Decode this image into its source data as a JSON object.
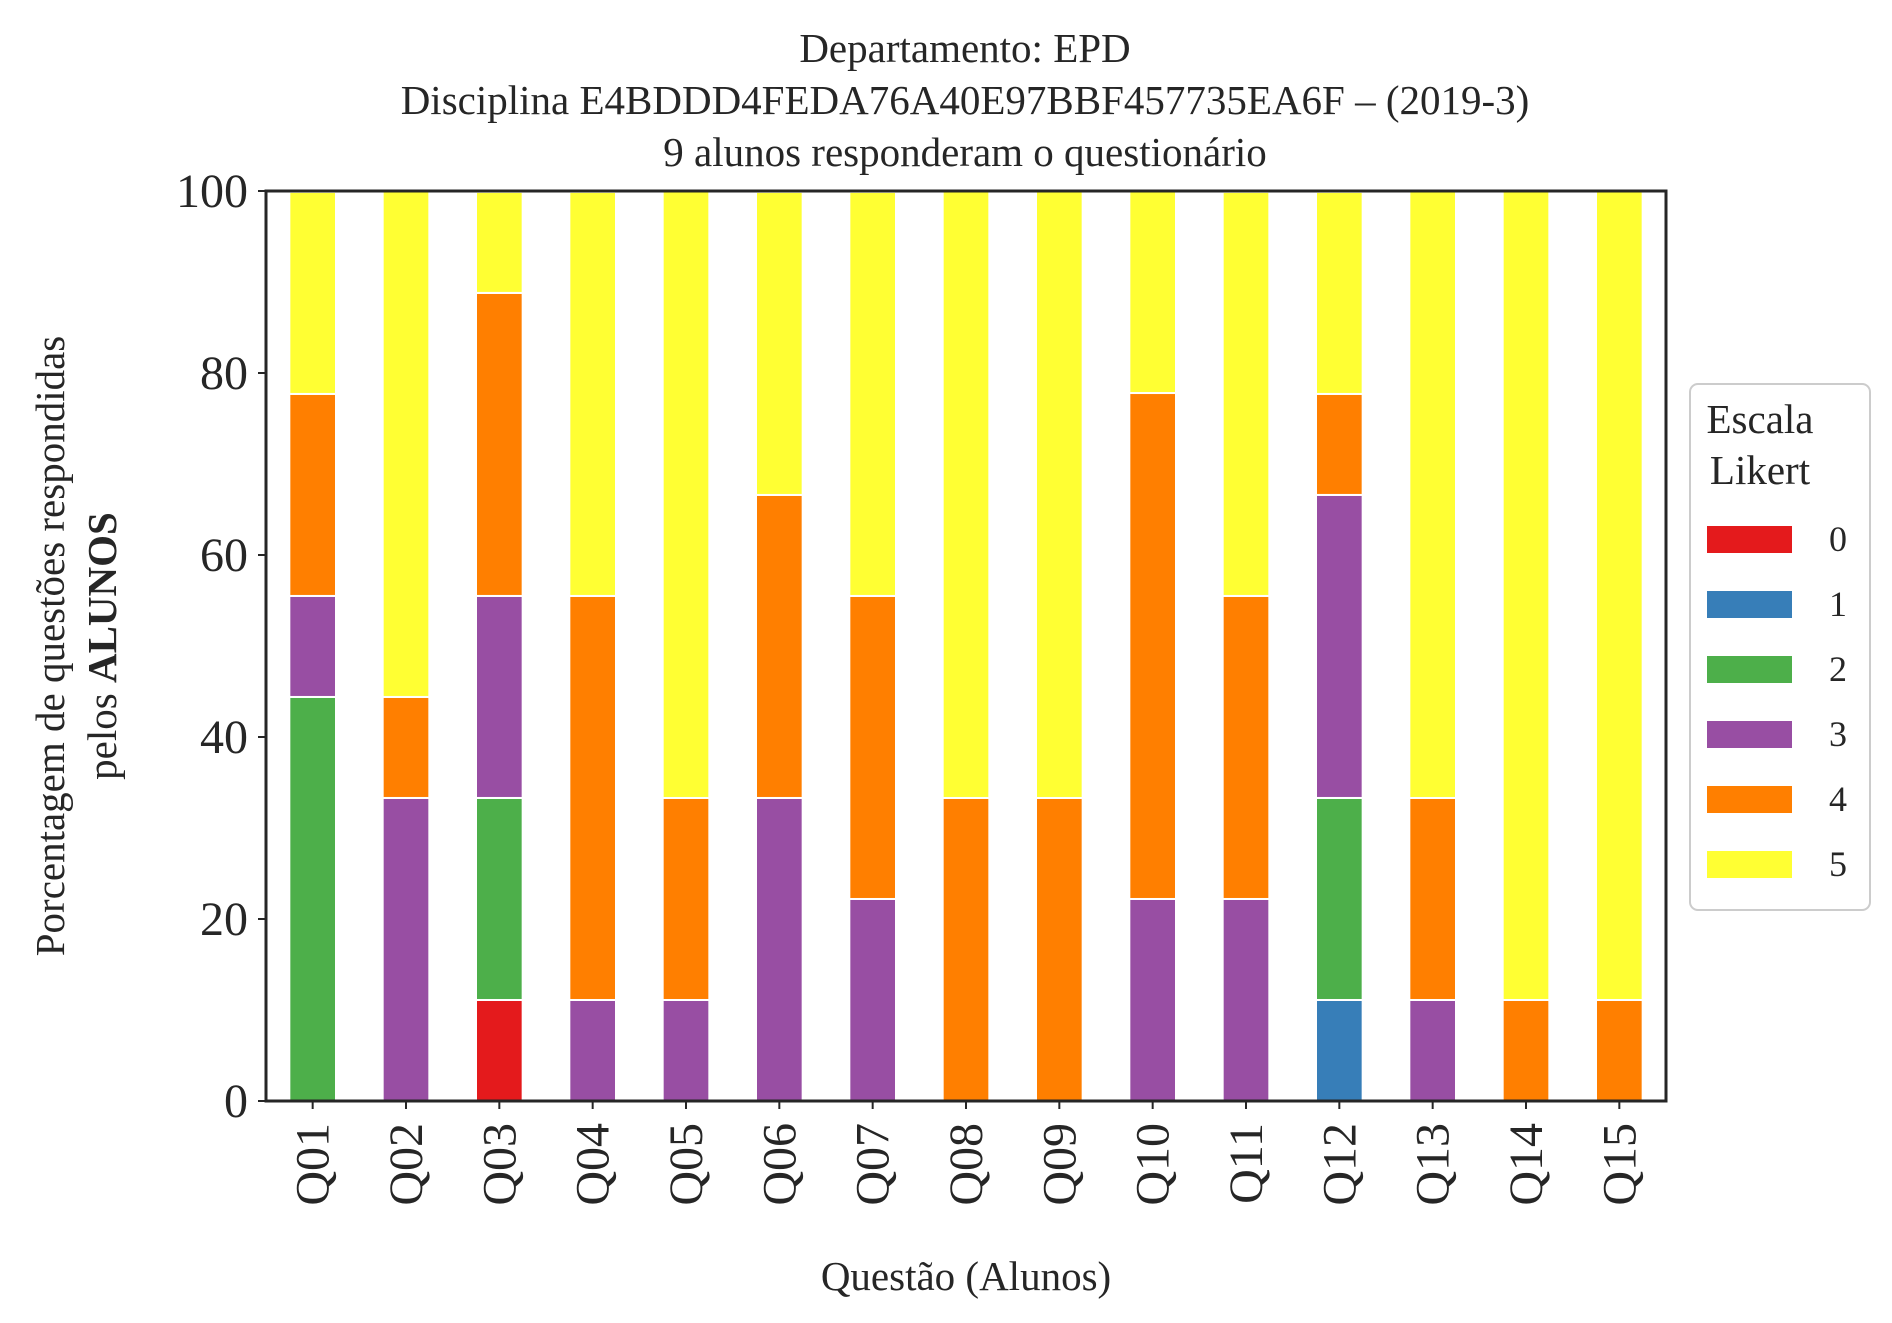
{
  "chart_data": {
    "type": "bar",
    "stacked": true,
    "title_lines": [
      "Departamento: EPD",
      "Disciplina E4BDDD4FEDA76A40E97BBF457735EA6F – (2019-3)",
      "9 alunos responderam o questionário"
    ],
    "xlabel": "Questão (Alunos)",
    "ylabel_line1": "Porcentagem de questões respondidas",
    "ylabel_line2_prefix": "pelos ",
    "ylabel_line2_bold": "ALUNOS",
    "ylim": [
      0,
      100
    ],
    "yticks": [
      0,
      20,
      40,
      60,
      80,
      100
    ],
    "grid": false,
    "legend_position": "right-center",
    "legend_title_lines": [
      "Escala",
      "Likert"
    ],
    "categories": [
      "Q01",
      "Q02",
      "Q03",
      "Q04",
      "Q05",
      "Q06",
      "Q07",
      "Q08",
      "Q09",
      "Q10",
      "Q11",
      "Q12",
      "Q13",
      "Q14",
      "Q15"
    ],
    "series": [
      {
        "name": "0",
        "color": "#e41a1c",
        "values": [
          0,
          0,
          11.1,
          0,
          0,
          0,
          0,
          0,
          0,
          0,
          0,
          0,
          0,
          0,
          0
        ]
      },
      {
        "name": "1",
        "color": "#377eb8",
        "values": [
          0,
          0,
          0,
          0,
          0,
          0,
          0,
          0,
          0,
          0,
          0,
          11.1,
          0,
          0,
          0
        ]
      },
      {
        "name": "2",
        "color": "#4daf4a",
        "values": [
          44.4,
          0,
          22.2,
          0,
          0,
          0,
          0,
          0,
          0,
          0,
          0,
          22.2,
          0,
          0,
          0
        ]
      },
      {
        "name": "3",
        "color": "#984ea3",
        "values": [
          11.1,
          33.3,
          22.2,
          11.1,
          11.1,
          33.3,
          22.2,
          0,
          0,
          22.2,
          22.2,
          33.3,
          11.1,
          0,
          0
        ]
      },
      {
        "name": "4",
        "color": "#ff7f00",
        "values": [
          22.2,
          11.1,
          33.3,
          44.4,
          22.2,
          33.3,
          33.3,
          33.3,
          33.3,
          55.6,
          33.3,
          11.1,
          22.2,
          11.1,
          11.1
        ]
      },
      {
        "name": "5",
        "color": "#ffff33",
        "values": [
          22.2,
          55.6,
          11.1,
          44.4,
          66.7,
          33.3,
          44.4,
          66.7,
          66.7,
          22.2,
          44.4,
          22.2,
          66.7,
          88.9,
          88.9
        ]
      }
    ]
  }
}
